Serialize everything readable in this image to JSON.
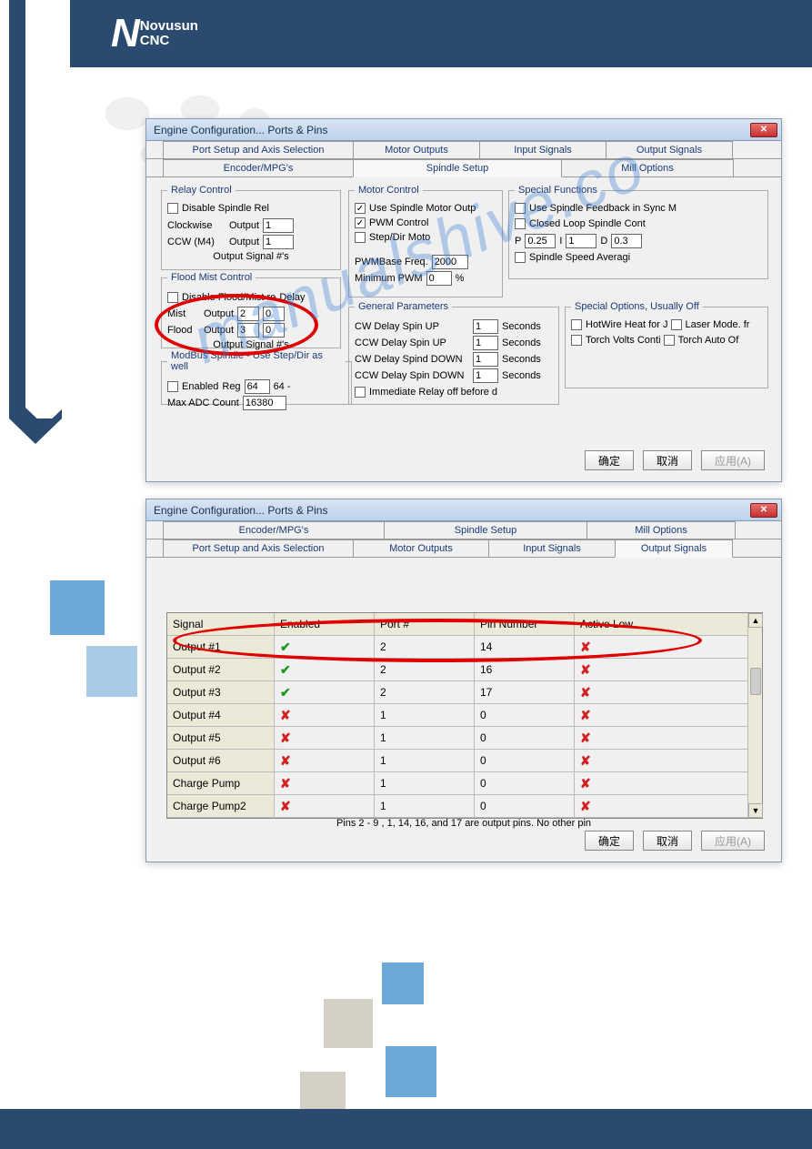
{
  "brand": {
    "name": "Novusun",
    "sub": "CNC"
  },
  "watermark": "manualshive.co",
  "dialog": {
    "title": "Engine Configuration... Ports & Pins",
    "close_glyph": "✕",
    "tabs": {
      "port_setup": "Port Setup and Axis Selection",
      "motor_outputs": "Motor Outputs",
      "input_signals": "Input Signals",
      "output_signals": "Output Signals",
      "encoder": "Encoder/MPG's",
      "spindle": "Spindle Setup",
      "mill": "Mill Options"
    },
    "buttons": {
      "ok": "确定",
      "cancel": "取消",
      "apply": "应用(A)"
    }
  },
  "spindle_tab": {
    "relay_control": {
      "legend": "Relay Control",
      "disable": "Disable Spindle Rel",
      "clockwise": "Clockwise",
      "ccw": "CCW (M4)",
      "output": "Output",
      "cw_val": "1",
      "ccw_val": "1",
      "note": "Output Signal #'s"
    },
    "flood_mist": {
      "legend": "Flood Mist Control",
      "disable": "Disable Flood/Mist re",
      "delay": "Delay",
      "mist": "Mist",
      "flood": "Flood",
      "output": "Output",
      "mist_out": "2",
      "mist_delay": "0",
      "flood_out": "3",
      "flood_delay": "0",
      "note": "Output Signal #'s"
    },
    "modbus": {
      "legend": "ModBus Spindle - Use Step/Dir as well",
      "enabled": "Enabled",
      "reg": "Reg",
      "reg_val": "64",
      "reg_after": "64 -",
      "max_adc": "Max ADC Count",
      "max_adc_val": "16380"
    },
    "motor_control": {
      "legend": "Motor Control",
      "use_motor": "Use Spindle Motor Outp",
      "pwm": "PWM Control",
      "stepdir": "Step/Dir Moto",
      "pwmbase": "PWMBase Freq.",
      "pwmbase_val": "2000",
      "min_pwm": "Minimum PWM",
      "min_pwm_val": "0",
      "pct": "%"
    },
    "gen_params": {
      "legend": "General Parameters",
      "cw_up": "CW Delay Spin UP",
      "ccw_up": "CCW Delay Spin UP",
      "cw_down": "CW Delay Spind DOWN",
      "ccw_down": "CCW Delay Spin DOWN",
      "val": "1",
      "seconds": "Seconds",
      "immediate": "Immediate Relay off before d"
    },
    "special_funcs": {
      "legend": "Special Functions",
      "feedback": "Use Spindle Feedback in Sync M",
      "closed": "Closed Loop Spindle Cont",
      "p": "P",
      "p_val": "0.25",
      "i": "I",
      "i_val": "1",
      "d": "D",
      "d_val": "0.3",
      "avg": "Spindle Speed Averagi"
    },
    "special_opts": {
      "legend": "Special Options, Usually Off",
      "hotwire": "HotWire Heat for J",
      "laser": "Laser Mode. fr",
      "torch_v": "Torch Volts Conti",
      "torch_a": "Torch Auto Of"
    }
  },
  "output_tab": {
    "columns": {
      "signal": "Signal",
      "enabled": "Enabled",
      "port": "Port #",
      "pin": "Pin Number",
      "active": "Active Low"
    },
    "rows": [
      {
        "signal": "Output #1",
        "enabled": true,
        "port": "2",
        "pin": "14",
        "active": false
      },
      {
        "signal": "Output #2",
        "enabled": true,
        "port": "2",
        "pin": "16",
        "active": false
      },
      {
        "signal": "Output #3",
        "enabled": true,
        "port": "2",
        "pin": "17",
        "active": false
      },
      {
        "signal": "Output #4",
        "enabled": false,
        "port": "1",
        "pin": "0",
        "active": false
      },
      {
        "signal": "Output #5",
        "enabled": false,
        "port": "1",
        "pin": "0",
        "active": false
      },
      {
        "signal": "Output #6",
        "enabled": false,
        "port": "1",
        "pin": "0",
        "active": false
      },
      {
        "signal": "Charge Pump",
        "enabled": false,
        "port": "1",
        "pin": "0",
        "active": false
      },
      {
        "signal": "Charge Pump2",
        "enabled": false,
        "port": "1",
        "pin": "0",
        "active": false
      }
    ],
    "note": "Pins 2 - 9 , 1, 14, 16, and 17 are output pins. No  other pin"
  }
}
